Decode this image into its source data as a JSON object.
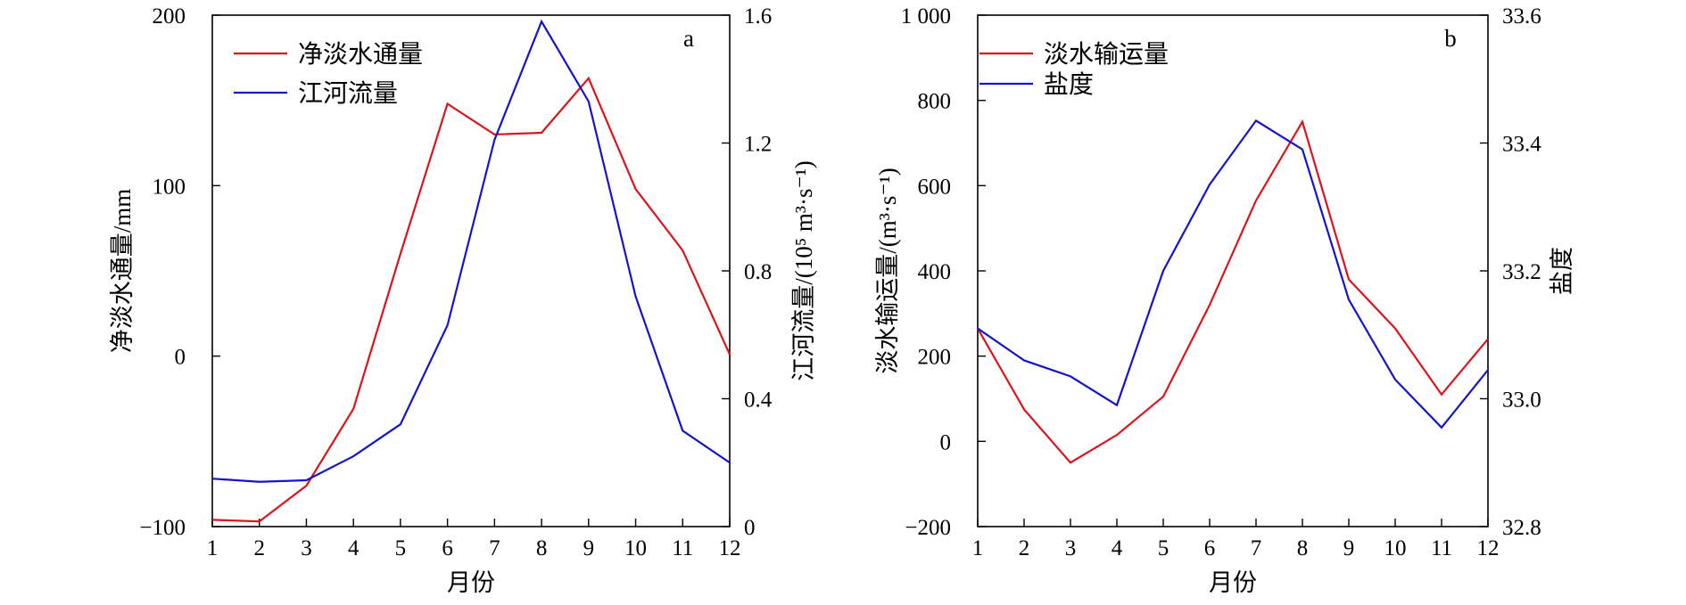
{
  "chart_data": [
    {
      "type": "line",
      "panel_label": "a",
      "xlabel": "月份",
      "x": [
        1,
        2,
        3,
        4,
        5,
        6,
        7,
        8,
        9,
        10,
        11,
        12
      ],
      "xlim": [
        1,
        12
      ],
      "ylabel_left": "净淡水通量/mm",
      "ylim_left": [
        -100,
        200
      ],
      "yticks_left": [
        "−100",
        "0",
        "100",
        "200"
      ],
      "ylabel_right": "江河流量/(10⁵ m³·s⁻¹)",
      "ylim_right": [
        0,
        1.6
      ],
      "yticks_right": [
        "0",
        "0.4",
        "0.8",
        "1.2",
        "1.6"
      ],
      "legend_position": "top-left",
      "grid": false,
      "series": [
        {
          "name": "净淡水通量",
          "axis": "left",
          "color": "#d9141c",
          "values": [
            -96,
            -97,
            -76,
            -31,
            60,
            148,
            130,
            131,
            163,
            98,
            62,
            1
          ]
        },
        {
          "name": "江河流量",
          "axis": "right",
          "color": "#1414c8",
          "values": [
            0.15,
            0.14,
            0.145,
            0.22,
            0.32,
            0.63,
            1.21,
            1.58,
            1.33,
            0.72,
            0.3,
            0.2
          ]
        }
      ]
    },
    {
      "type": "line",
      "panel_label": "b",
      "xlabel": "月份",
      "x": [
        1,
        2,
        3,
        4,
        5,
        6,
        7,
        8,
        9,
        10,
        11,
        12
      ],
      "xlim": [
        1,
        12
      ],
      "ylabel_left": "淡水输运量/(m³·s⁻¹)",
      "ylim_left": [
        -200,
        1000
      ],
      "yticks_left": [
        "−200",
        "0",
        "200",
        "400",
        "600",
        "800",
        "1 000"
      ],
      "ylabel_right": "盐度",
      "ylim_right": [
        32.8,
        33.6
      ],
      "yticks_right": [
        "32.8",
        "33.0",
        "33.2",
        "33.4",
        "33.6"
      ],
      "legend_position": "top-left",
      "grid": false,
      "series": [
        {
          "name": "淡水输运量",
          "axis": "left",
          "color": "#d9141c",
          "values": [
            265,
            75,
            -50,
            15,
            105,
            320,
            565,
            750,
            380,
            265,
            110,
            240
          ]
        },
        {
          "name": "盐度",
          "axis": "right",
          "color": "#1414c8",
          "values": [
            33.11,
            33.06,
            33.035,
            32.99,
            33.2,
            33.335,
            33.435,
            33.39,
            33.155,
            33.03,
            32.955,
            33.045
          ]
        }
      ]
    }
  ]
}
